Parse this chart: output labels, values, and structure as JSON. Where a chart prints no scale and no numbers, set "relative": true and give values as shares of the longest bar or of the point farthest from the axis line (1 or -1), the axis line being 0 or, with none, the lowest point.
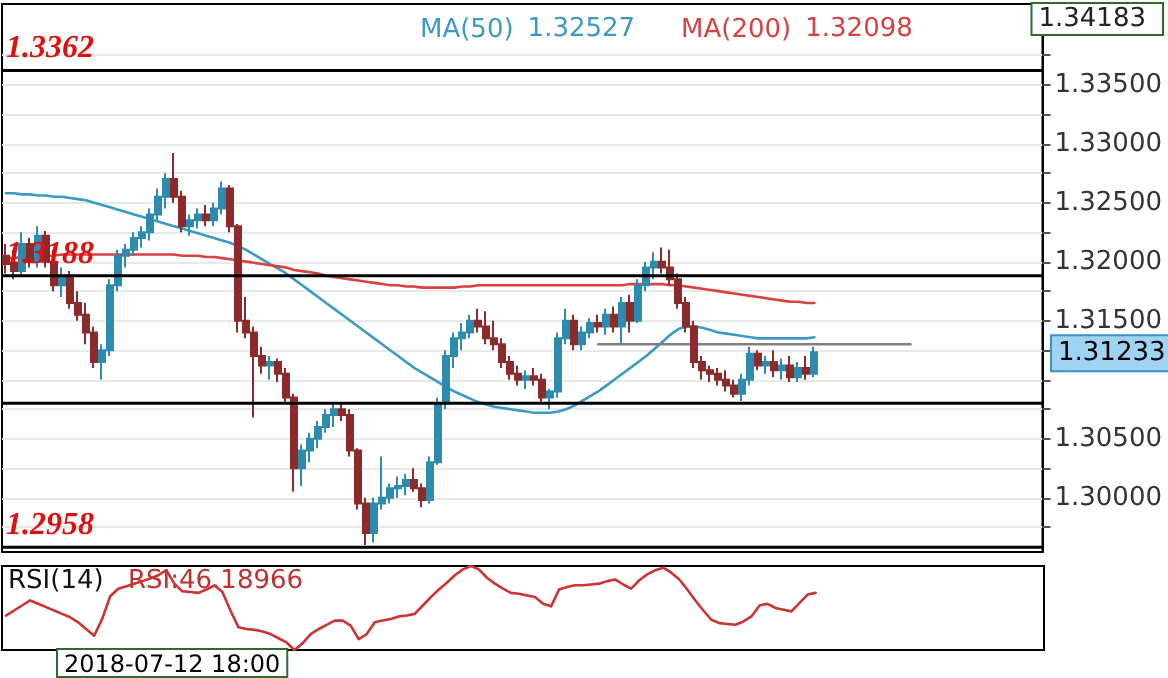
{
  "chart_data": [
    {
      "type": "candlestick",
      "tick_labels": "y",
      "grid": "y",
      "legend": "top",
      "marker": "none",
      "ylim": [
        1.2954,
        1.34183
      ],
      "yticks": [
        {
          "value": 1.2975,
          "label": null
        },
        {
          "value": 1.3,
          "label": "1.30000"
        },
        {
          "value": 1.3025,
          "label": null
        },
        {
          "value": 1.305,
          "label": "1.30500"
        },
        {
          "value": 1.3075,
          "label": null
        },
        {
          "value": 1.31,
          "label": null
        },
        {
          "value": 1.3125,
          "label": null
        },
        {
          "value": 1.315,
          "label": "1.31500"
        },
        {
          "value": 1.3175,
          "label": null
        },
        {
          "value": 1.32,
          "label": "1.32000"
        },
        {
          "value": 1.3225,
          "label": null
        },
        {
          "value": 1.325,
          "label": "1.32500"
        },
        {
          "value": 1.3275,
          "label": null
        },
        {
          "value": 1.33,
          "label": "1.33000"
        },
        {
          "value": 1.3325,
          "label": null
        },
        {
          "value": 1.335,
          "label": "1.33500"
        },
        {
          "value": 1.3375,
          "label": null
        }
      ],
      "categories": [
        null,
        null,
        null,
        null,
        null,
        null,
        null,
        null,
        null,
        null,
        null,
        null,
        null,
        null,
        null,
        null,
        null,
        null,
        null,
        null,
        null,
        null,
        null,
        null,
        null,
        null,
        null,
        null,
        null,
        null,
        null,
        null,
        null,
        null,
        null,
        null,
        null,
        null,
        null,
        null,
        null,
        null,
        null,
        null,
        null,
        null,
        null,
        null,
        null,
        null,
        null,
        null,
        null,
        null,
        null,
        null,
        null,
        null,
        null,
        null,
        null,
        null,
        null,
        null,
        null,
        null,
        null,
        null,
        null,
        null,
        null,
        null,
        null,
        null,
        null,
        null,
        null,
        null,
        null,
        null,
        null,
        null,
        null,
        null,
        null,
        null,
        null,
        null,
        null,
        null,
        null,
        null,
        null,
        null,
        null,
        null,
        null,
        null,
        null,
        null,
        null,
        null,
        null,
        null,
        null,
        null,
        null,
        null,
        null,
        null,
        null,
        null,
        null,
        null,
        null,
        null,
        null,
        null,
        null,
        null,
        null,
        null,
        null,
        null,
        null,
        null,
        null,
        null,
        null,
        null
      ],
      "ohlc": [
        [
          1.3205,
          1.3215,
          1.319,
          1.3198
        ],
        [
          1.3198,
          1.321,
          1.3185,
          1.3192
        ],
        [
          1.3192,
          1.3225,
          1.3188,
          1.3215
        ],
        [
          1.3215,
          1.322,
          1.3195,
          1.32
        ],
        [
          1.32,
          1.323,
          1.3195,
          1.3222
        ],
        [
          1.3222,
          1.3226,
          1.3195,
          1.32
        ],
        [
          1.32,
          1.321,
          1.3175,
          1.318
        ],
        [
          1.318,
          1.3195,
          1.317,
          1.3188
        ],
        [
          1.3188,
          1.3192,
          1.316,
          1.3165
        ],
        [
          1.3165,
          1.3175,
          1.315,
          1.3155
        ],
        [
          1.3155,
          1.3165,
          1.313,
          1.314
        ],
        [
          1.314,
          1.3145,
          1.311,
          1.3115
        ],
        [
          1.3115,
          1.313,
          1.31,
          1.3125
        ],
        [
          1.3125,
          1.3185,
          1.312,
          1.318
        ],
        [
          1.318,
          1.321,
          1.3175,
          1.3205
        ],
        [
          1.3205,
          1.3215,
          1.3195,
          1.321
        ],
        [
          1.321,
          1.3225,
          1.3205,
          1.322
        ],
        [
          1.322,
          1.323,
          1.3212,
          1.3225
        ],
        [
          1.3225,
          1.3245,
          1.3218,
          1.324
        ],
        [
          1.324,
          1.3262,
          1.3235,
          1.3255
        ],
        [
          1.3255,
          1.3275,
          1.3245,
          1.327
        ],
        [
          1.327,
          1.3292,
          1.325,
          1.3255
        ],
        [
          1.3255,
          1.326,
          1.3225,
          1.323
        ],
        [
          1.323,
          1.324,
          1.3222,
          1.3235
        ],
        [
          1.3235,
          1.3245,
          1.3228,
          1.324
        ],
        [
          1.324,
          1.3248,
          1.323,
          1.3235
        ],
        [
          1.3235,
          1.325,
          1.323,
          1.3245
        ],
        [
          1.3245,
          1.3268,
          1.324,
          1.3262
        ],
        [
          1.3262,
          1.3265,
          1.3225,
          1.323
        ],
        [
          1.323,
          1.3232,
          1.314,
          1.315
        ],
        [
          1.315,
          1.317,
          1.3135,
          1.314
        ],
        [
          1.314,
          1.3145,
          1.3068,
          1.312
        ],
        [
          1.312,
          1.3128,
          1.3105,
          1.3112
        ],
        [
          1.3112,
          1.312,
          1.31,
          1.3115
        ],
        [
          1.3115,
          1.3118,
          1.3098,
          1.3105
        ],
        [
          1.3105,
          1.311,
          1.308,
          1.3085
        ],
        [
          1.3085,
          1.3088,
          1.3005,
          1.3025
        ],
        [
          1.3025,
          1.3045,
          1.301,
          1.304
        ],
        [
          1.304,
          1.3055,
          1.303,
          1.305
        ],
        [
          1.305,
          1.3065,
          1.3042,
          1.306
        ],
        [
          1.306,
          1.3075,
          1.3055,
          1.307
        ],
        [
          1.307,
          1.308,
          1.306,
          1.3075
        ],
        [
          1.3075,
          1.308,
          1.3065,
          1.307
        ],
        [
          1.307,
          1.3075,
          1.3035,
          1.304
        ],
        [
          1.304,
          1.3042,
          1.299,
          1.2995
        ],
        [
          1.2995,
          1.3,
          1.296,
          1.297
        ],
        [
          1.297,
          1.3,
          1.2962,
          1.2995
        ],
        [
          1.2995,
          1.3035,
          1.299,
          1.3
        ],
        [
          1.3,
          1.3012,
          1.2995,
          1.3008
        ],
        [
          1.3008,
          1.3018,
          1.3,
          1.301
        ],
        [
          1.301,
          1.302,
          1.3002,
          1.3015
        ],
        [
          1.3015,
          1.3025,
          1.3005,
          1.3008
        ],
        [
          1.3008,
          1.3012,
          1.2992,
          1.2998
        ],
        [
          1.2998,
          1.3035,
          1.2995,
          1.303
        ],
        [
          1.303,
          1.3085,
          1.3028,
          1.308
        ],
        [
          1.308,
          1.3125,
          1.3075,
          1.312
        ],
        [
          1.312,
          1.314,
          1.311,
          1.3135
        ],
        [
          1.3135,
          1.3148,
          1.3125,
          1.314
        ],
        [
          1.314,
          1.3155,
          1.3135,
          1.315
        ],
        [
          1.315,
          1.316,
          1.314,
          1.3145
        ],
        [
          1.3145,
          1.3158,
          1.313,
          1.3135
        ],
        [
          1.3135,
          1.315,
          1.3125,
          1.313
        ],
        [
          1.313,
          1.3135,
          1.311,
          1.3115
        ],
        [
          1.3115,
          1.312,
          1.31,
          1.3105
        ],
        [
          1.3105,
          1.3112,
          1.3095,
          1.31
        ],
        [
          1.31,
          1.3108,
          1.3092,
          1.3103
        ],
        [
          1.3103,
          1.311,
          1.3095,
          1.31
        ],
        [
          1.31,
          1.3105,
          1.308,
          1.3085
        ],
        [
          1.3085,
          1.3092,
          1.3075,
          1.309
        ],
        [
          1.309,
          1.314,
          1.3085,
          1.3135
        ],
        [
          1.3135,
          1.316,
          1.313,
          1.315
        ],
        [
          1.315,
          1.3155,
          1.3125,
          1.313
        ],
        [
          1.313,
          1.3145,
          1.3125,
          1.314
        ],
        [
          1.314,
          1.3152,
          1.3135,
          1.3148
        ],
        [
          1.3148,
          1.3155,
          1.314,
          1.3145
        ],
        [
          1.3145,
          1.316,
          1.3138,
          1.3155
        ],
        [
          1.3155,
          1.3162,
          1.314,
          1.3145
        ],
        [
          1.3145,
          1.317,
          1.313,
          1.3165
        ],
        [
          1.3165,
          1.3172,
          1.314,
          1.315
        ],
        [
          1.315,
          1.3185,
          1.3148,
          1.318
        ],
        [
          1.318,
          1.32,
          1.3175,
          1.3195
        ],
        [
          1.3195,
          1.3208,
          1.3185,
          1.32
        ],
        [
          1.32,
          1.3212,
          1.319,
          1.3195
        ],
        [
          1.3195,
          1.321,
          1.318,
          1.3185
        ],
        [
          1.3185,
          1.319,
          1.316,
          1.3165
        ],
        [
          1.3165,
          1.317,
          1.314,
          1.3145
        ],
        [
          1.3145,
          1.315,
          1.311,
          1.3115
        ],
        [
          1.3115,
          1.312,
          1.31,
          1.3108
        ],
        [
          1.3108,
          1.3112,
          1.3098,
          1.3105
        ],
        [
          1.3105,
          1.311,
          1.3095,
          1.31
        ],
        [
          1.31,
          1.3108,
          1.309,
          1.3095
        ],
        [
          1.3095,
          1.31,
          1.3085,
          1.3088
        ],
        [
          1.3088,
          1.3105,
          1.3082,
          1.31
        ],
        [
          1.31,
          1.3128,
          1.3095,
          1.3122
        ],
        [
          1.3122,
          1.3125,
          1.3108,
          1.3112
        ],
        [
          1.3112,
          1.312,
          1.3105,
          1.3115
        ],
        [
          1.3115,
          1.3125,
          1.3102,
          1.3108
        ],
        [
          1.3108,
          1.3118,
          1.31,
          1.3112
        ],
        [
          1.3112,
          1.312,
          1.3098,
          1.3102
        ],
        [
          1.3102,
          1.3115,
          1.3098,
          1.311
        ],
        [
          1.311,
          1.312,
          1.31,
          1.3105
        ],
        [
          1.3105,
          1.3128,
          1.3102,
          1.31233
        ],
        null,
        null,
        null,
        null,
        null,
        null,
        null,
        null,
        null,
        null,
        null,
        null,
        null,
        null,
        null,
        null,
        null,
        null,
        null,
        null,
        null,
        null,
        null,
        null,
        null,
        null,
        null,
        null
      ],
      "series": [
        {
          "name": "MA(50)",
          "type": "line",
          "color": "#3b9ac4",
          "values": [
            1.3258,
            1.3258,
            1.3257,
            1.3257,
            1.3256,
            1.3256,
            1.3255,
            1.3255,
            1.3254,
            1.3253,
            1.3252,
            1.325,
            1.3248,
            1.3246,
            1.3244,
            1.3242,
            1.324,
            1.3238,
            1.3236,
            1.3234,
            1.3232,
            1.323,
            1.3228,
            1.3226,
            1.3224,
            1.3222,
            1.322,
            1.3218,
            1.3216,
            1.3213,
            1.321,
            1.3206,
            1.3202,
            1.3198,
            1.3194,
            1.319,
            1.3185,
            1.318,
            1.3175,
            1.317,
            1.3165,
            1.316,
            1.3155,
            1.315,
            1.3145,
            1.314,
            1.3135,
            1.313,
            1.3125,
            1.312,
            1.3115,
            1.311,
            1.3106,
            1.3102,
            1.3098,
            1.3094,
            1.309,
            1.3087,
            1.3084,
            1.3081,
            1.3079,
            1.3077,
            1.3076,
            1.3075,
            1.3074,
            1.3073,
            1.3072,
            1.3072,
            1.3072,
            1.3073,
            1.3075,
            1.3078,
            1.3082,
            1.3086,
            1.309,
            1.3095,
            1.31,
            1.3105,
            1.311,
            1.3115,
            1.312,
            1.3126,
            1.3132,
            1.3138,
            1.3143,
            1.3145,
            1.3145,
            1.3144,
            1.3142,
            1.314,
            1.3139,
            1.3138,
            1.3137,
            1.3136,
            1.3135,
            1.3135,
            1.3135,
            1.3135,
            1.3135,
            1.3135,
            1.3135,
            1.3136,
            null,
            null,
            null,
            null,
            null,
            null,
            null,
            null,
            null,
            null,
            null,
            null,
            null,
            null,
            null,
            null,
            null,
            null,
            null,
            null,
            null,
            null,
            null,
            null,
            null,
            null,
            null,
            null
          ]
        },
        {
          "name": "MA(200)",
          "type": "line",
          "color": "#d94040",
          "values": [
            1.3203,
            1.3203,
            1.3204,
            1.3204,
            1.3205,
            1.3205,
            1.3205,
            1.3206,
            1.3206,
            1.3206,
            1.3206,
            1.3206,
            1.3206,
            1.3206,
            1.3206,
            1.3206,
            1.3206,
            1.3206,
            1.3206,
            1.3206,
            1.3206,
            1.3206,
            1.3205,
            1.3205,
            1.3205,
            1.3204,
            1.3204,
            1.3203,
            1.3202,
            1.3201,
            1.32,
            1.3199,
            1.3198,
            1.3197,
            1.3196,
            1.3195,
            1.3193,
            1.3192,
            1.3191,
            1.319,
            1.3188,
            1.3187,
            1.3186,
            1.3185,
            1.3184,
            1.3183,
            1.3182,
            1.3181,
            1.318,
            1.318,
            1.3179,
            1.3179,
            1.3178,
            1.3178,
            1.3178,
            1.3178,
            1.3178,
            1.3179,
            1.3179,
            1.318,
            1.318,
            1.318,
            1.318,
            1.318,
            1.318,
            1.318,
            1.318,
            1.318,
            1.318,
            1.318,
            1.318,
            1.318,
            1.318,
            1.318,
            1.318,
            1.318,
            1.318,
            1.318,
            1.3181,
            1.3181,
            1.3181,
            1.3181,
            1.3181,
            1.318,
            1.318,
            1.3179,
            1.3178,
            1.3177,
            1.3176,
            1.3175,
            1.3174,
            1.3173,
            1.3172,
            1.3171,
            1.317,
            1.3169,
            1.3168,
            1.3167,
            1.3166,
            1.3166,
            1.3165,
            1.3165,
            null,
            null,
            null,
            null,
            null,
            null,
            null,
            null,
            null,
            null,
            null,
            null,
            null,
            null,
            null,
            null,
            null,
            null,
            null,
            null,
            null,
            null,
            null,
            null,
            null,
            null,
            null,
            null
          ]
        },
        {
          "type": "line",
          "color": "#808080",
          "values": [
            null,
            null,
            null,
            null,
            null,
            null,
            null,
            null,
            null,
            null,
            null,
            null,
            null,
            null,
            null,
            null,
            null,
            null,
            null,
            null,
            null,
            null,
            null,
            null,
            null,
            null,
            null,
            null,
            null,
            null,
            null,
            null,
            null,
            null,
            null,
            null,
            null,
            null,
            null,
            null,
            null,
            null,
            null,
            null,
            null,
            null,
            null,
            null,
            null,
            null,
            null,
            null,
            null,
            null,
            null,
            null,
            null,
            null,
            null,
            null,
            null,
            null,
            null,
            null,
            null,
            null,
            null,
            null,
            null,
            null,
            null,
            null,
            null,
            null,
            1.313,
            1.313,
            1.313,
            1.313,
            1.313,
            1.313,
            1.313,
            1.313,
            1.313,
            1.313,
            1.313,
            1.313,
            1.313,
            1.313,
            1.313,
            1.313,
            1.313,
            1.313,
            1.313,
            1.313,
            1.313,
            1.313,
            1.313,
            1.313,
            1.313,
            1.313,
            1.313,
            1.313,
            1.313,
            1.313,
            1.313,
            1.313,
            1.313,
            1.313,
            1.313,
            1.313,
            1.313,
            1.313,
            1.313,
            1.313,
            null,
            null,
            null,
            null,
            null,
            null,
            null,
            null,
            null,
            null,
            null,
            null,
            null,
            null,
            null,
            null
          ]
        }
      ],
      "ref_lines": [
        {
          "axis": "y",
          "value": 1.3362,
          "label": "1.3362",
          "color": "#000000"
        },
        {
          "axis": "y",
          "value": 1.3188,
          "label": "1.3188",
          "color": "#000000"
        },
        {
          "axis": "y",
          "value": 1.308,
          "label": null,
          "color": "#000000"
        },
        {
          "axis": "y",
          "value": 1.2958,
          "label": "1.2958",
          "color": "#000000"
        }
      ],
      "annotations": [
        "1.32527",
        "1.32098",
        "1.34183",
        "1.31233"
      ]
    },
    {
      "type": "line",
      "title": "RSI(14)",
      "relative": true,
      "tick_labels": false,
      "marker": "none",
      "categories": [
        null,
        null,
        null,
        null,
        null,
        null,
        null,
        null,
        null,
        null,
        null,
        null,
        null,
        null,
        null,
        null,
        null,
        null,
        null,
        null,
        null,
        null,
        null,
        null,
        null,
        null,
        null,
        null,
        null,
        null,
        null,
        null,
        null,
        null,
        null,
        null,
        null,
        null,
        null,
        null,
        null,
        null,
        null,
        null,
        null,
        null,
        null,
        null,
        null,
        null,
        null,
        null,
        null,
        null,
        null,
        null,
        null,
        null,
        null,
        null,
        null,
        null,
        null,
        null,
        null,
        null,
        null,
        null,
        null,
        null,
        null,
        null,
        null,
        null,
        null,
        null,
        null,
        null,
        null,
        null,
        null,
        null,
        null,
        null,
        null,
        null,
        null,
        null,
        null,
        null,
        null,
        null,
        null,
        null,
        null,
        null,
        null,
        null,
        null,
        null,
        null,
        null,
        null,
        null,
        null,
        null,
        null,
        null,
        null,
        null,
        null,
        null,
        null,
        null,
        null,
        null,
        null,
        null,
        null,
        null,
        null,
        null,
        null,
        null,
        null,
        null,
        null,
        null,
        null,
        null
      ],
      "series": [
        {
          "color": "#cc3333",
          "values": [
            0.41,
            0.47,
            0.53,
            0.59,
            0.55,
            0.51,
            0.47,
            0.43,
            0.39,
            0.33,
            0.25,
            0.17,
            0.37,
            0.64,
            0.73,
            0.76,
            0.79,
            0.82,
            0.85,
            0.89,
            0.95,
            0.79,
            0.7,
            0.69,
            0.68,
            0.72,
            0.77,
            0.69,
            0.47,
            0.27,
            0.25,
            0.24,
            0.22,
            0.19,
            0.14,
            0.09,
            0,
            0.08,
            0.19,
            0.25,
            0.3,
            0.35,
            0.35,
            0.29,
            0.13,
            0.19,
            0.33,
            0.35,
            0.37,
            0.4,
            0.41,
            0.43,
            0.53,
            0.63,
            0.72,
            0.8,
            0.89,
            0.96,
            1,
            0.96,
            0.86,
            0.79,
            0.73,
            0.68,
            0.67,
            0.65,
            0.63,
            0.55,
            0.52,
            0.72,
            0.75,
            0.77,
            0.77,
            0.78,
            0.79,
            0.82,
            0.84,
            0.78,
            0.73,
            0.83,
            0.9,
            0.95,
            0.98,
            0.92,
            0.84,
            0.72,
            0.59,
            0.47,
            0.36,
            0.32,
            0.31,
            0.3,
            0.34,
            0.4,
            0.53,
            0.55,
            0.5,
            0.48,
            0.46,
            0.56,
            0.66,
            0.68,
            null,
            null,
            null,
            null,
            null,
            null,
            null,
            null,
            null,
            null,
            null,
            null,
            null,
            null,
            null,
            null,
            null,
            null,
            null,
            null,
            null,
            null,
            null,
            null,
            null,
            null,
            null,
            null
          ]
        }
      ],
      "annotations": [
        "RSI:46.18966",
        "2018-07-12 18:00"
      ]
    }
  ]
}
